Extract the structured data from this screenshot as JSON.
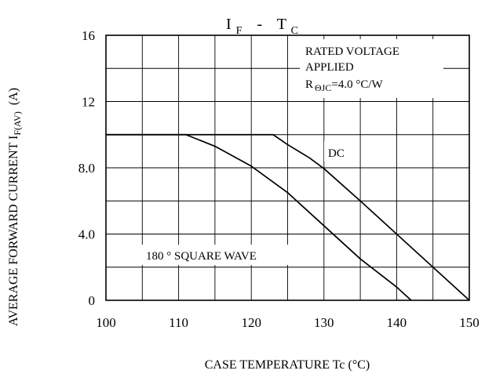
{
  "chart_data": {
    "type": "line",
    "title": "I F  -  T C",
    "title_parts": {
      "var1": "I",
      "sub1": "F",
      "dash": "-",
      "var2": "T",
      "sub2": "C"
    },
    "xlabel": "CASE TEMPERATURE Tc   (°C)",
    "ylabel": {
      "main": "AVERAGE FORWARD CURRENT I",
      "sub": "F(AV)",
      "unit": "(A)"
    },
    "xlim": [
      100,
      150
    ],
    "ylim": [
      0,
      16
    ],
    "x_grid_step": 5,
    "y_grid_step": 2,
    "grid": true,
    "x_ticks": [
      {
        "value": 100,
        "label": "100"
      },
      {
        "value": 110,
        "label": "110"
      },
      {
        "value": 120,
        "label": "120"
      },
      {
        "value": 130,
        "label": "130"
      },
      {
        "value": 140,
        "label": "140"
      },
      {
        "value": 150,
        "label": "150"
      }
    ],
    "y_ticks": [
      {
        "value": 0,
        "label": "0"
      },
      {
        "value": 4,
        "label": "4.0"
      },
      {
        "value": 8,
        "label": "8.0"
      },
      {
        "value": 12,
        "label": "12"
      },
      {
        "value": 16,
        "label": "16"
      }
    ],
    "series": [
      {
        "name": "DC",
        "x": [
          100,
          123,
          125,
          128,
          130,
          135,
          140,
          145,
          150
        ],
        "y": [
          10,
          10,
          9.4,
          8.6,
          7.95,
          6.0,
          4.0,
          2.0,
          0
        ]
      },
      {
        "name": "180 ° SQUARE WAVE",
        "x": [
          100,
          111,
          115,
          120,
          125,
          130,
          135,
          140,
          142
        ],
        "y": [
          10,
          10,
          9.3,
          8.1,
          6.5,
          4.5,
          2.5,
          0.8,
          0
        ]
      }
    ],
    "annotations": {
      "rated_line1": "RATED VOLTAGE",
      "rated_line2": "APPLIED",
      "rth_prefix": "R",
      "rth_sub": "ΘJC",
      "rth_value": "=4.0 °C/W",
      "dc_label": "DC",
      "sq_label": "180 °  SQUARE WAVE"
    }
  }
}
